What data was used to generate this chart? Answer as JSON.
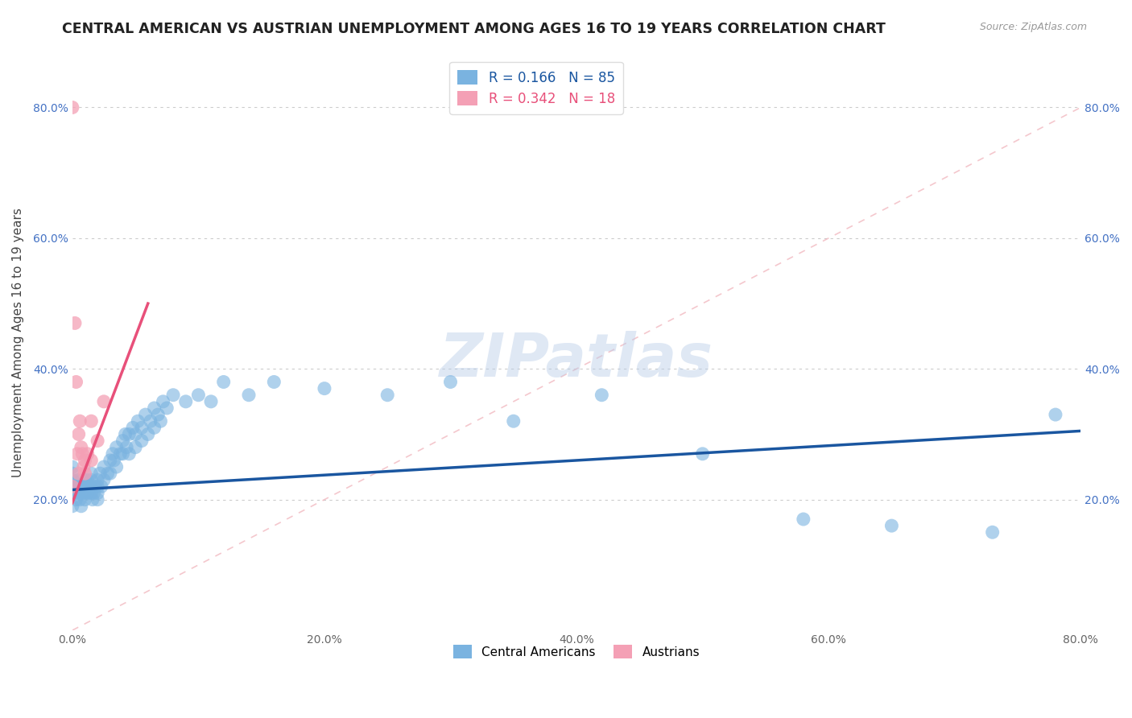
{
  "title": "CENTRAL AMERICAN VS AUSTRIAN UNEMPLOYMENT AMONG AGES 16 TO 19 YEARS CORRELATION CHART",
  "source": "Source: ZipAtlas.com",
  "ylabel": "Unemployment Among Ages 16 to 19 years",
  "xlim": [
    0.0,
    0.8
  ],
  "ylim": [
    0.0,
    0.88
  ],
  "x_ticks": [
    0.0,
    0.2,
    0.4,
    0.6,
    0.8
  ],
  "x_tick_labels": [
    "0.0%",
    "20.0%",
    "40.0%",
    "60.0%",
    "80.0%"
  ],
  "y_ticks": [
    0.0,
    0.2,
    0.4,
    0.6,
    0.8
  ],
  "y_tick_labels": [
    "",
    "20.0%",
    "40.0%",
    "60.0%",
    "80.0%"
  ],
  "legend1_label": "Central Americans",
  "legend2_label": "Austrians",
  "blue_color": "#7ab3e0",
  "pink_color": "#f4a0b5",
  "blue_line_color": "#1a56a0",
  "pink_line_color": "#e8507a",
  "diag_color": "#f0b0b8",
  "r_blue": "0.166",
  "n_blue": "85",
  "r_pink": "0.342",
  "n_pink": "18",
  "watermark": "ZIPatlas",
  "blue_scatter_x": [
    0.0,
    0.0,
    0.0,
    0.0,
    0.0,
    0.0,
    0.002,
    0.003,
    0.003,
    0.005,
    0.005,
    0.005,
    0.006,
    0.007,
    0.008,
    0.008,
    0.009,
    0.01,
    0.01,
    0.01,
    0.01,
    0.012,
    0.012,
    0.013,
    0.015,
    0.015,
    0.015,
    0.015,
    0.016,
    0.017,
    0.018,
    0.02,
    0.02,
    0.02,
    0.02,
    0.022,
    0.023,
    0.025,
    0.025,
    0.028,
    0.03,
    0.03,
    0.032,
    0.033,
    0.035,
    0.035,
    0.038,
    0.04,
    0.04,
    0.042,
    0.043,
    0.045,
    0.045,
    0.048,
    0.05,
    0.05,
    0.052,
    0.055,
    0.055,
    0.058,
    0.06,
    0.062,
    0.065,
    0.065,
    0.068,
    0.07,
    0.072,
    0.075,
    0.08,
    0.09,
    0.1,
    0.11,
    0.12,
    0.14,
    0.16,
    0.2,
    0.25,
    0.3,
    0.35,
    0.42,
    0.5,
    0.58,
    0.65,
    0.73,
    0.78
  ],
  "blue_scatter_y": [
    0.22,
    0.22,
    0.23,
    0.24,
    0.25,
    0.19,
    0.21,
    0.22,
    0.2,
    0.22,
    0.23,
    0.21,
    0.2,
    0.19,
    0.21,
    0.23,
    0.22,
    0.2,
    0.21,
    0.22,
    0.23,
    0.21,
    0.23,
    0.22,
    0.21,
    0.22,
    0.23,
    0.24,
    0.2,
    0.21,
    0.22,
    0.22,
    0.23,
    0.21,
    0.2,
    0.24,
    0.22,
    0.25,
    0.23,
    0.24,
    0.26,
    0.24,
    0.27,
    0.26,
    0.28,
    0.25,
    0.27,
    0.29,
    0.27,
    0.3,
    0.28,
    0.3,
    0.27,
    0.31,
    0.28,
    0.3,
    0.32,
    0.31,
    0.29,
    0.33,
    0.3,
    0.32,
    0.34,
    0.31,
    0.33,
    0.32,
    0.35,
    0.34,
    0.36,
    0.35,
    0.36,
    0.35,
    0.38,
    0.36,
    0.38,
    0.37,
    0.36,
    0.38,
    0.32,
    0.36,
    0.27,
    0.17,
    0.16,
    0.15,
    0.33
  ],
  "pink_scatter_x": [
    0.0,
    0.0,
    0.002,
    0.003,
    0.004,
    0.005,
    0.005,
    0.006,
    0.007,
    0.008,
    0.009,
    0.01,
    0.01,
    0.012,
    0.015,
    0.015,
    0.02,
    0.025
  ],
  "pink_scatter_y": [
    0.8,
    0.22,
    0.47,
    0.38,
    0.27,
    0.3,
    0.24,
    0.32,
    0.28,
    0.27,
    0.25,
    0.26,
    0.24,
    0.27,
    0.26,
    0.32,
    0.29,
    0.35
  ],
  "blue_line_x0": 0.0,
  "blue_line_x1": 0.8,
  "blue_line_y0": 0.215,
  "blue_line_y1": 0.305,
  "pink_line_x0": 0.0,
  "pink_line_x1": 0.06,
  "pink_line_y0": 0.195,
  "pink_line_y1": 0.5
}
